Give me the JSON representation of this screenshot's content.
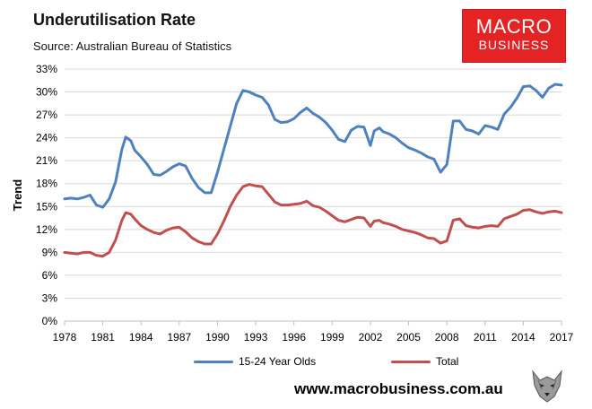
{
  "title": "Underutilisation Rate",
  "subtitle": "Source: Australian Bureau of Statistics",
  "logo": {
    "line1": "MACRO",
    "line2": "BUSINESS",
    "color": "#e42424"
  },
  "website": "www.macrobusiness.com.au",
  "chart_data": {
    "type": "line",
    "title": "Underutilisation Rate",
    "xlabel": "",
    "ylabel": "Trend",
    "ylim": [
      0,
      33
    ],
    "xlim": [
      1978,
      2017
    ],
    "yticks": [
      "0%",
      "3%",
      "6%",
      "9%",
      "12%",
      "15%",
      "18%",
      "21%",
      "24%",
      "27%",
      "30%",
      "33%"
    ],
    "xticks": [
      "1978",
      "1981",
      "1984",
      "1987",
      "1990",
      "1993",
      "1996",
      "1999",
      "2002",
      "2005",
      "2008",
      "2011",
      "2014",
      "2017"
    ],
    "grid": true,
    "legend": "bottom",
    "series": [
      {
        "name": "15-24 Year Olds",
        "color": "#4f81bd",
        "x": [
          1978.0,
          1978.5,
          1979.0,
          1979.5,
          1980.0,
          1980.5,
          1981.0,
          1981.5,
          1982.0,
          1982.5,
          1982.8,
          1983.2,
          1983.5,
          1984.0,
          1984.5,
          1985.0,
          1985.5,
          1986.0,
          1986.5,
          1987.0,
          1987.5,
          1988.0,
          1988.5,
          1989.0,
          1989.5,
          1990.0,
          1990.5,
          1991.0,
          1991.5,
          1992.0,
          1992.5,
          1993.0,
          1993.5,
          1994.0,
          1994.5,
          1995.0,
          1995.5,
          1996.0,
          1996.5,
          1997.0,
          1997.5,
          1998.0,
          1998.5,
          1999.0,
          1999.5,
          2000.0,
          2000.5,
          2001.0,
          2001.5,
          2002.0,
          2002.3,
          2002.7,
          2003.0,
          2003.5,
          2004.0,
          2004.5,
          2005.0,
          2005.5,
          2006.0,
          2006.5,
          2007.0,
          2007.5,
          2008.0,
          2008.5,
          2009.0,
          2009.5,
          2010.0,
          2010.5,
          2011.0,
          2011.5,
          2012.0,
          2012.5,
          2013.0,
          2013.5,
          2014.0,
          2014.5,
          2015.0,
          2015.5,
          2016.0,
          2016.5,
          2017.0
        ],
        "values": [
          16.0,
          16.1,
          16.0,
          16.2,
          16.5,
          15.2,
          14.9,
          16.0,
          18.2,
          22.5,
          24.1,
          23.6,
          22.4,
          21.5,
          20.5,
          19.2,
          19.1,
          19.6,
          20.2,
          20.6,
          20.3,
          18.7,
          17.5,
          16.8,
          16.8,
          19.5,
          22.5,
          25.5,
          28.5,
          30.2,
          30.0,
          29.6,
          29.3,
          28.3,
          26.4,
          26.0,
          26.1,
          26.5,
          27.3,
          27.9,
          27.2,
          26.7,
          26.0,
          25.0,
          23.8,
          23.5,
          25.0,
          25.5,
          25.4,
          23.0,
          24.9,
          25.3,
          24.8,
          24.5,
          24.0,
          23.3,
          22.7,
          22.4,
          22.0,
          21.5,
          21.2,
          19.5,
          20.5,
          26.2,
          26.2,
          25.1,
          24.9,
          24.5,
          25.6,
          25.4,
          25.1,
          27.1,
          28.0,
          29.2,
          30.7,
          30.8,
          30.2,
          29.3,
          30.5,
          31.0,
          30.9
        ]
      },
      {
        "name": "Total",
        "color": "#c0504d",
        "x": [
          1978.0,
          1978.5,
          1979.0,
          1979.5,
          1980.0,
          1980.5,
          1981.0,
          1981.5,
          1982.0,
          1982.5,
          1982.8,
          1983.2,
          1983.5,
          1984.0,
          1984.5,
          1985.0,
          1985.5,
          1986.0,
          1986.5,
          1987.0,
          1987.5,
          1988.0,
          1988.5,
          1989.0,
          1989.5,
          1990.0,
          1990.5,
          1991.0,
          1991.5,
          1992.0,
          1992.5,
          1993.0,
          1993.5,
          1994.0,
          1994.5,
          1995.0,
          1995.5,
          1996.0,
          1996.5,
          1997.0,
          1997.5,
          1998.0,
          1998.5,
          1999.0,
          1999.5,
          2000.0,
          2000.5,
          2001.0,
          2001.5,
          2002.0,
          2002.3,
          2002.7,
          2003.0,
          2003.5,
          2004.0,
          2004.5,
          2005.0,
          2005.5,
          2006.0,
          2006.5,
          2007.0,
          2007.5,
          2008.0,
          2008.5,
          2009.0,
          2009.5,
          2010.0,
          2010.5,
          2011.0,
          2011.5,
          2012.0,
          2012.5,
          2013.0,
          2013.5,
          2014.0,
          2014.5,
          2015.0,
          2015.5,
          2016.0,
          2016.5,
          2017.0
        ],
        "values": [
          9.0,
          8.9,
          8.8,
          9.0,
          9.0,
          8.6,
          8.5,
          9.0,
          10.6,
          13.2,
          14.2,
          14.0,
          13.4,
          12.5,
          12.0,
          11.6,
          11.4,
          11.9,
          12.2,
          12.3,
          11.7,
          10.9,
          10.4,
          10.1,
          10.1,
          11.4,
          13.1,
          15.0,
          16.5,
          17.6,
          17.9,
          17.7,
          17.6,
          16.6,
          15.6,
          15.2,
          15.2,
          15.3,
          15.4,
          15.7,
          15.1,
          14.9,
          14.4,
          13.8,
          13.2,
          13.0,
          13.3,
          13.6,
          13.5,
          12.4,
          13.1,
          13.2,
          12.9,
          12.7,
          12.4,
          12.0,
          11.8,
          11.6,
          11.3,
          10.9,
          10.8,
          10.2,
          10.5,
          13.2,
          13.4,
          12.5,
          12.3,
          12.2,
          12.4,
          12.5,
          12.4,
          13.4,
          13.7,
          14.0,
          14.5,
          14.6,
          14.3,
          14.1,
          14.3,
          14.4,
          14.2
        ]
      }
    ]
  }
}
